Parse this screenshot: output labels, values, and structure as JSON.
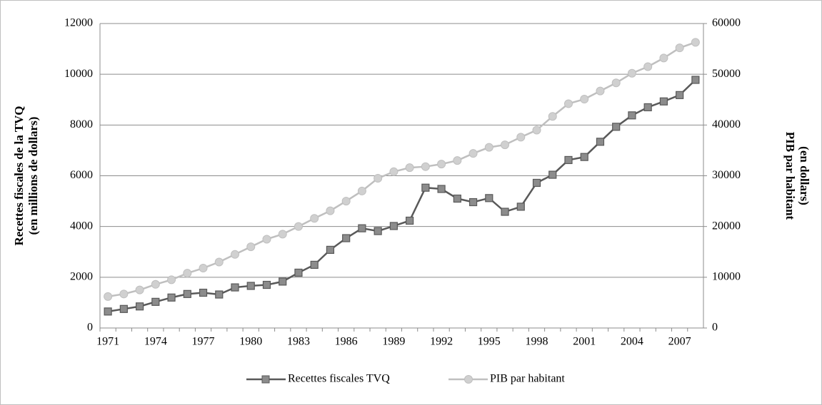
{
  "chart_data": {
    "type": "line",
    "categories": [
      "1971",
      null,
      null,
      "1974",
      null,
      null,
      "1977",
      null,
      null,
      "1980",
      null,
      null,
      "1983",
      null,
      null,
      "1986",
      null,
      null,
      "1989",
      null,
      null,
      "1992",
      null,
      null,
      "1995",
      null,
      null,
      "1998",
      null,
      null,
      "2001",
      null,
      null,
      "2004",
      null,
      null,
      "2007",
      null
    ],
    "y_label": [
      "Recettes fiscales de la TVQ",
      "(en millions de dollars)"
    ],
    "y2_label": [
      "PIB par habitant",
      "(en dollars)"
    ],
    "ylim": [
      0,
      12000
    ],
    "yticks": [
      0,
      2000,
      4000,
      6000,
      8000,
      10000,
      12000
    ],
    "y2lim": [
      0,
      60000
    ],
    "y2ticks": [
      0,
      10000,
      20000,
      30000,
      40000,
      50000,
      60000
    ],
    "grid": true,
    "legend": "bottom",
    "series": [
      {
        "name": "Recettes fiscales TVQ",
        "color": "#595959",
        "marker": "square",
        "axis": "y",
        "values": [
          650,
          750,
          850,
          1030,
          1200,
          1340,
          1390,
          1320,
          1600,
          1660,
          1700,
          1830,
          2180,
          2490,
          3080,
          3540,
          3930,
          3820,
          4020,
          4230,
          5530,
          5480,
          5100,
          4960,
          5120,
          4580,
          4780,
          5720,
          6040,
          6620,
          6740,
          7340,
          7930,
          8380,
          8700,
          8930,
          9180,
          9780
        ]
      },
      {
        "name": "PIB par habitant",
        "color": "#bfbfbf",
        "marker": "circle",
        "axis": "y2",
        "values": [
          6200,
          6700,
          7500,
          8600,
          9500,
          10800,
          11800,
          13000,
          14500,
          16000,
          17500,
          18500,
          20000,
          21600,
          23100,
          25000,
          27000,
          29500,
          30800,
          31600,
          31800,
          32300,
          33000,
          34400,
          35600,
          36100,
          37600,
          39000,
          41700,
          44200,
          45100,
          46700,
          48300,
          50200,
          51500,
          53200,
          55200,
          56300
        ]
      }
    ]
  }
}
